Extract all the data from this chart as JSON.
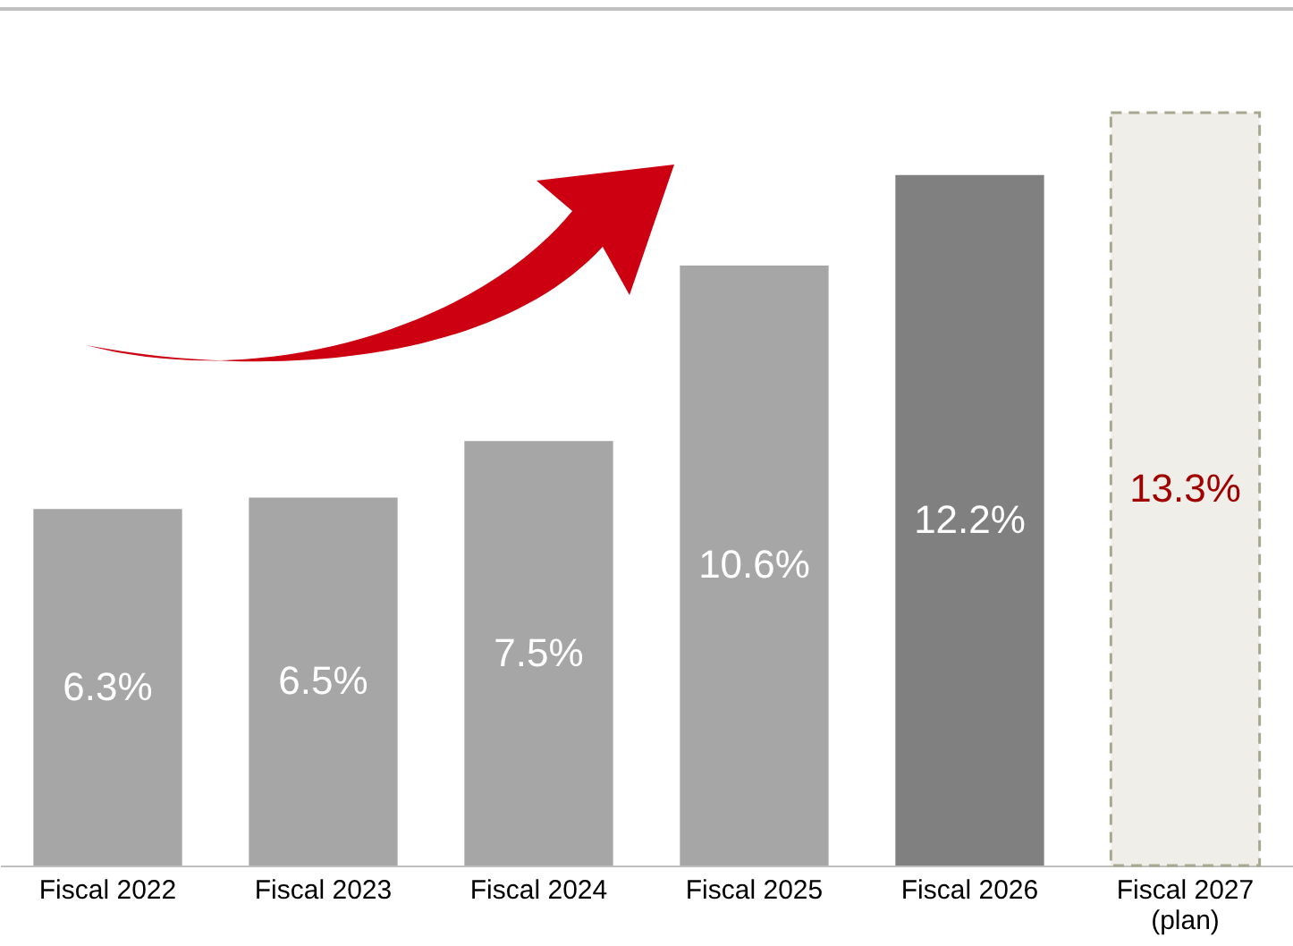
{
  "chart_data": {
    "type": "bar",
    "categories": [
      "Fiscal 2022",
      "Fiscal 2023",
      "Fiscal 2024",
      "Fiscal 2025",
      "Fiscal 2026",
      "Fiscal 2027\n(plan)"
    ],
    "values": [
      6.3,
      6.5,
      7.5,
      10.6,
      12.2,
      13.3
    ],
    "colors": [
      "#a6a6a6",
      "#a6a6a6",
      "#a6a6a6",
      "#a6a6a6",
      "#808080",
      "#efeee9"
    ],
    "value_labels": [
      "6.3%",
      "6.5%",
      "7.5%",
      "10.6%",
      "12.2%",
      "13.3%"
    ],
    "grid": false
  }
}
